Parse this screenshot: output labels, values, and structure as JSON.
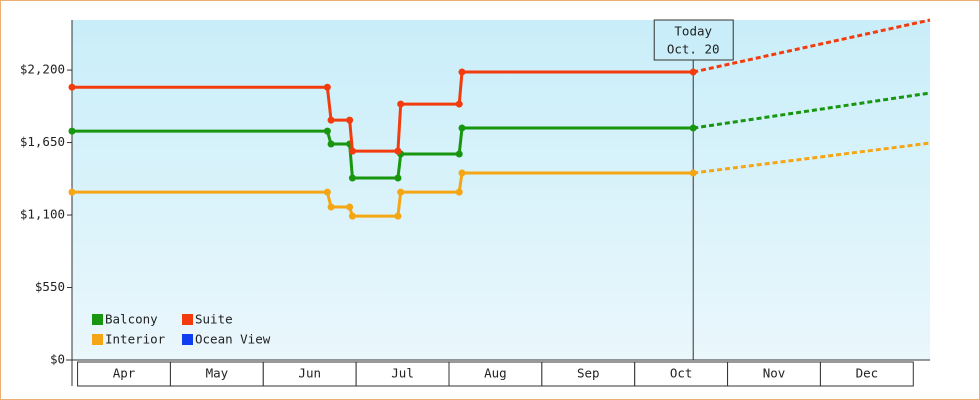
{
  "chart_data": {
    "type": "line",
    "x": [
      3.94,
      6.69,
      6.73,
      6.93,
      6.96,
      7.45,
      7.48,
      8.11,
      8.14,
      10.63,
      13.18
    ],
    "series": [
      {
        "name": "Balcony",
        "color": "#18960f",
        "values": [
          1737,
          1737,
          1639,
          1639,
          1381,
          1381,
          1563,
          1563,
          1760,
          1760,
          2026
        ]
      },
      {
        "name": "Suite",
        "color": "#f23c0e",
        "values": [
          2070,
          2070,
          1820,
          1820,
          1585,
          1585,
          1942,
          1942,
          2185,
          2185,
          2580
        ]
      },
      {
        "name": "Interior",
        "color": "#f5a614",
        "values": [
          1274,
          1274,
          1161,
          1161,
          1092,
          1092,
          1274,
          1274,
          1419,
          1419,
          1646
        ]
      },
      {
        "name": "Ocean View",
        "color": "#0f3ef0",
        "values": [
          null,
          null,
          null,
          null,
          null,
          null,
          null,
          null,
          null,
          null,
          null
        ]
      }
    ],
    "xlim": [
      3.94,
      13.18
    ],
    "xticks": [
      {
        "value": 4.5,
        "label": "Apr"
      },
      {
        "value": 5.5,
        "label": "May"
      },
      {
        "value": 6.5,
        "label": "Jun"
      },
      {
        "value": 7.5,
        "label": "Jul"
      },
      {
        "value": 8.5,
        "label": "Aug"
      },
      {
        "value": 9.5,
        "label": "Sep"
      },
      {
        "value": 10.5,
        "label": "Oct"
      },
      {
        "value": 11.5,
        "label": "Nov"
      },
      {
        "value": 12.5,
        "label": "Dec"
      }
    ],
    "ylim": [
      0,
      2580
    ],
    "yticks": [
      {
        "value": 0,
        "label": "$0"
      },
      {
        "value": 550,
        "label": "$550"
      },
      {
        "value": 1100,
        "label": "$1,100"
      },
      {
        "value": 1650,
        "label": "$1,650"
      },
      {
        "value": 2200,
        "label": "$2,200"
      }
    ],
    "annotation": {
      "x": 10.63,
      "lines": [
        "Today",
        "Oct. 20"
      ]
    },
    "legend": "lower left"
  }
}
